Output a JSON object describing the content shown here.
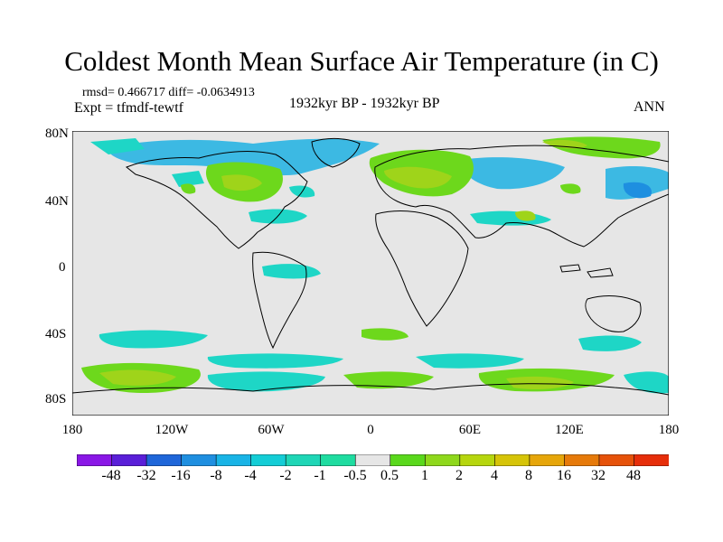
{
  "title": "Coldest Month Mean Surface Air Temperature (in C)",
  "stats_text": "rmsd= 0.466717 diff= -0.0634913",
  "experiment_text": "Expt = tfmdf-tewtf",
  "period_text": "1932kyr BP - 1932kyr BP",
  "season_text": "ANN",
  "lat_labels": [
    "80N",
    "40N",
    "0",
    "40S",
    "80S"
  ],
  "lon_labels": [
    "180",
    "120W",
    "60W",
    "0",
    "60E",
    "120E",
    "180"
  ],
  "colorbar": {
    "labels": [
      "-48",
      "-32",
      "-16",
      "-8",
      "-4",
      "-2",
      "-1",
      "-0.5",
      "0.5",
      "1",
      "2",
      "4",
      "8",
      "16",
      "32",
      "48"
    ],
    "colors": [
      "#8a17e6",
      "#5a1fd8",
      "#1f66d9",
      "#1f8fe0",
      "#19b4e6",
      "#14cdd6",
      "#1fd6b6",
      "#1fdca0",
      "#e6e6e6",
      "#5ad81c",
      "#8fd81c",
      "#b6d60e",
      "#d6c408",
      "#e6a60a",
      "#e67a0a",
      "#e6520a",
      "#e62e0a"
    ]
  },
  "map_colors": {
    "background": "#e6e6e6",
    "cool": "#3cb9e3",
    "mid_cool": "#1ed6c6",
    "light_cool": "#2fd9b0",
    "warm": "#6dd81c",
    "warm2": "#9fd41a",
    "warm3": "#b9d012"
  }
}
